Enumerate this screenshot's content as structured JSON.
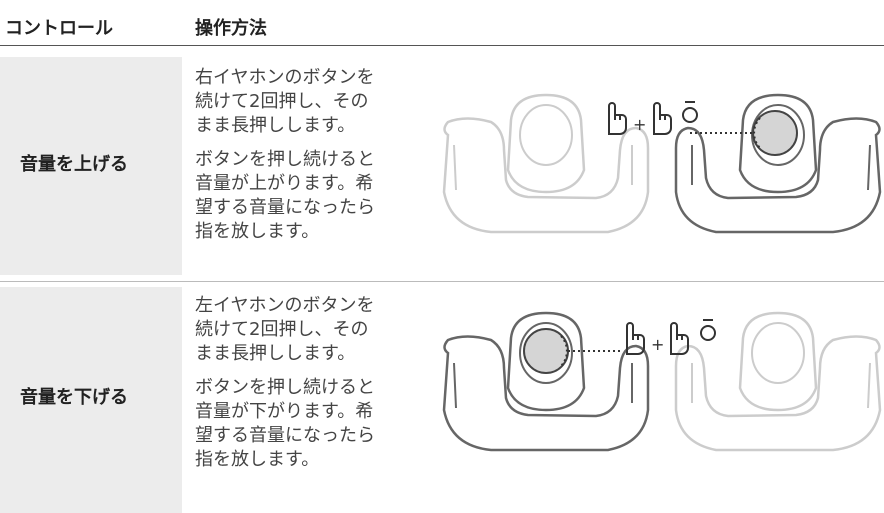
{
  "header": {
    "control": "コントロール",
    "operation": "操作方法"
  },
  "rows": [
    {
      "control": "音量を上げる",
      "paragraphs": [
        [
          "右イヤホンのボタンを",
          "続けて2回押し、その",
          "まま長押しします。"
        ],
        [
          "ボタンを押し続けると",
          "音量が上がります。希",
          "望する音量になったら",
          "指を放します。"
        ]
      ]
    },
    {
      "control": "音量を下げる",
      "paragraphs": [
        [
          "左イヤホンのボタンを",
          "続けて2回押し、その",
          "まま長押しします。"
        ],
        [
          "ボタンを押し続けると",
          "音量が下がります。希",
          "望する音量になったら",
          "指を放します。"
        ]
      ]
    }
  ]
}
